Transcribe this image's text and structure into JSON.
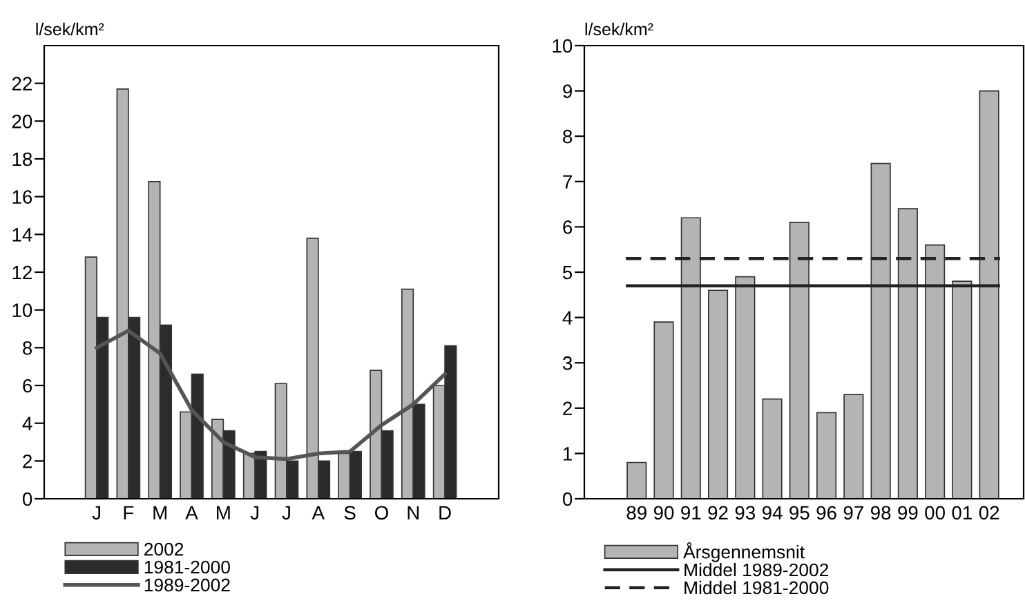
{
  "chart_data": [
    {
      "type": "bar",
      "ylabel": "l/sek/km²",
      "categories": [
        "J",
        "F",
        "M",
        "A",
        "M",
        "J",
        "J",
        "A",
        "S",
        "O",
        "N",
        "D"
      ],
      "series": [
        {
          "name": "2002",
          "type": "bar",
          "color": "#b4b4b4",
          "values": [
            12.8,
            21.7,
            16.8,
            4.6,
            4.2,
            2.4,
            6.1,
            13.8,
            2.4,
            6.8,
            11.1,
            6.0
          ]
        },
        {
          "name": "1981-2000",
          "type": "bar",
          "color": "#2b2b2b",
          "values": [
            9.6,
            9.6,
            9.2,
            6.6,
            3.6,
            2.5,
            2.0,
            2.0,
            2.5,
            3.6,
            5.0,
            8.1
          ]
        },
        {
          "name": "1989-2002",
          "type": "line",
          "color": "#555555",
          "values": [
            8.0,
            8.9,
            7.7,
            4.7,
            3.0,
            2.2,
            2.1,
            2.4,
            2.5,
            3.9,
            5.0,
            6.6
          ]
        }
      ],
      "ylim": [
        0,
        24
      ],
      "yticks": [
        0,
        2,
        4,
        6,
        8,
        10,
        12,
        14,
        16,
        18,
        20,
        22
      ],
      "grid": false,
      "legend": "bottom"
    },
    {
      "type": "bar",
      "ylabel": "l/sek/km²",
      "categories": [
        "89",
        "90",
        "91",
        "92",
        "93",
        "94",
        "95",
        "96",
        "97",
        "98",
        "99",
        "00",
        "01",
        "02"
      ],
      "series": [
        {
          "name": "Årsgennemsnit",
          "color": "#b4b4b4",
          "values": [
            0.8,
            3.9,
            6.2,
            4.6,
            4.9,
            2.2,
            6.1,
            1.9,
            2.3,
            7.4,
            6.4,
            5.6,
            4.8,
            9.0
          ]
        }
      ],
      "ref_lines": [
        {
          "axis": "y",
          "value": 4.7,
          "label": "Middel 1989-2002",
          "color": "#222222",
          "line_style": "solid"
        },
        {
          "axis": "y",
          "value": 5.3,
          "label": "Middel 1981-2000",
          "color": "#222222",
          "line_style": "dashed"
        }
      ],
      "ylim": [
        0,
        10
      ],
      "yticks": [
        0,
        1,
        2,
        3,
        4,
        5,
        6,
        7,
        8,
        9,
        10
      ],
      "grid": false,
      "legend": "bottom"
    }
  ]
}
